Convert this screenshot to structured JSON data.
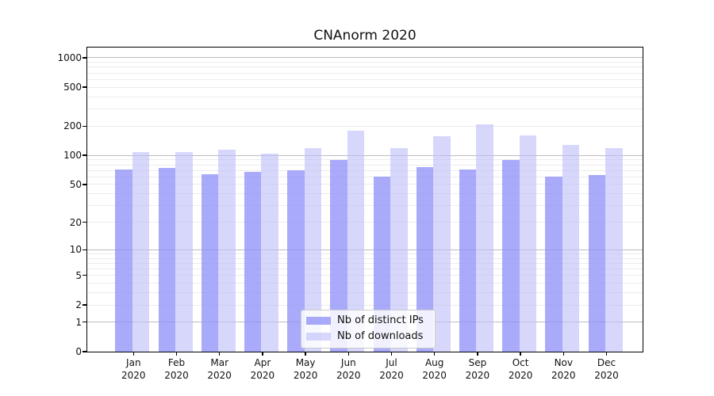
{
  "title": "CNAnorm 2020",
  "colors": {
    "ips_bar": "rgba(145,145,249,0.77)",
    "downloads_bar": "rgba(190,190,250,0.62)",
    "grid_major": "#bdbdbd",
    "grid_minor": "#ececec",
    "spine": "#000000",
    "legend_border": "#cccccc"
  },
  "legend": {
    "items": [
      {
        "label": "Nb of distinct IPs",
        "color_key": "ips_bar"
      },
      {
        "label": "Nb of downloads",
        "color_key": "downloads_bar"
      }
    ]
  },
  "chart_data": {
    "type": "bar",
    "title": "CNAnorm 2020",
    "categories": [
      "Jan",
      "Feb",
      "Mar",
      "Apr",
      "May",
      "Jun",
      "Jul",
      "Aug",
      "Sep",
      "Oct",
      "Nov",
      "Dec"
    ],
    "year": "2020",
    "series": [
      {
        "name": "Nb of distinct IPs",
        "values": [
          71,
          74,
          64,
          67,
          70,
          89,
          60,
          75,
          72,
          89,
          60,
          63
        ]
      },
      {
        "name": "Nb of downloads",
        "values": [
          108,
          108,
          115,
          104,
          119,
          180,
          118,
          158,
          210,
          161,
          127,
          118
        ]
      }
    ],
    "xlabel": "",
    "ylabel": "",
    "yscale": "log(1+x)",
    "yticks": [
      0,
      1,
      2,
      5,
      10,
      20,
      50,
      100,
      200,
      500,
      1000
    ],
    "ytick_labels": [
      "0",
      "1",
      "2",
      "5",
      "10",
      "20",
      "50",
      "100",
      "200",
      "500",
      "1000"
    ],
    "ylim": [
      0,
      1275
    ],
    "grid": "both",
    "legend_position": "lower center"
  }
}
